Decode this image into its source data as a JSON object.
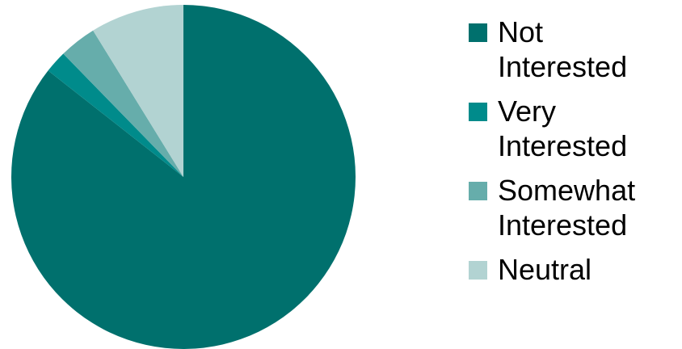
{
  "chart_data": {
    "type": "pie",
    "title": "",
    "slices": [
      {
        "label": "Not Interested",
        "value": 85.6,
        "color": "#00706d"
      },
      {
        "label": "Very Interested",
        "value": 2.1,
        "color": "#008b8b"
      },
      {
        "label": "Somewhat Interested",
        "value": 3.5,
        "color": "#66adab"
      },
      {
        "label": "Neutral",
        "value": 8.8,
        "color": "#b2d3d2"
      }
    ],
    "legend_position": "right"
  },
  "legend": {
    "items": [
      {
        "label": "Not Interested",
        "color": "#00706d"
      },
      {
        "label": "Very Interested",
        "color": "#008b8b"
      },
      {
        "label": "Somewhat Interested",
        "color": "#66adab"
      },
      {
        "label": "Neutral",
        "color": "#b2d3d2"
      }
    ]
  }
}
